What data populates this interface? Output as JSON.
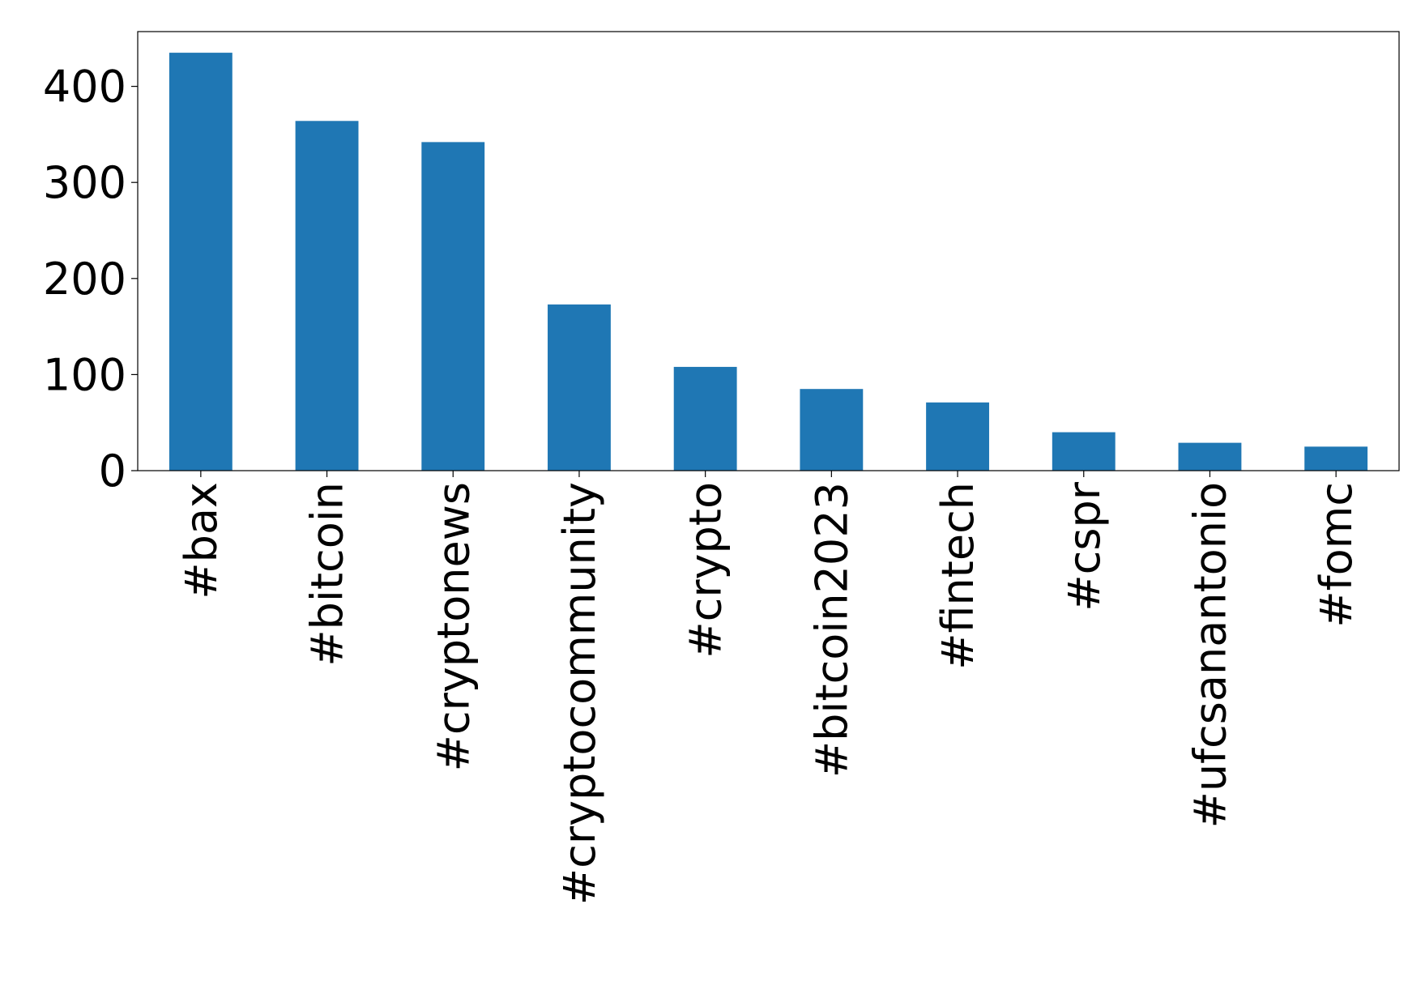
{
  "chart_data": {
    "type": "bar",
    "categories": [
      "#bax",
      "#bitcoin",
      "#cryptonews",
      "#cryptocommunity",
      "#crypto",
      "#bitcoin2023",
      "#fintech",
      "#cspr",
      "#ufcsanantonio",
      "#fomc"
    ],
    "values": [
      435,
      364,
      342,
      173,
      108,
      85,
      71,
      40,
      29,
      25
    ],
    "color": "#1f77b4",
    "ylim": [
      0,
      457
    ],
    "yticks": [
      0,
      100,
      200,
      300,
      400
    ],
    "grid": false
  }
}
